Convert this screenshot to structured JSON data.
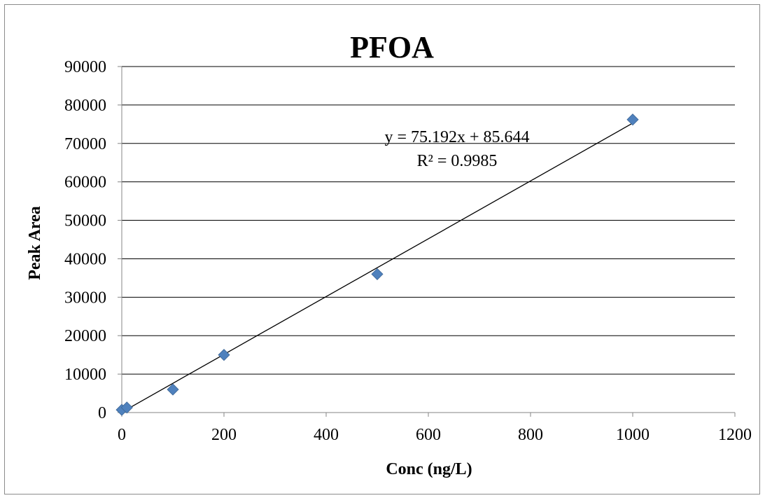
{
  "chart_data": {
    "type": "scatter",
    "title": "PFOA",
    "xlabel": "Conc (ng/L)",
    "ylabel": "Peak Area",
    "xlim": [
      0,
      1200
    ],
    "ylim": [
      0,
      90000
    ],
    "x_ticks": [
      0,
      200,
      400,
      600,
      800,
      1000,
      1200
    ],
    "y_ticks": [
      0,
      10000,
      20000,
      30000,
      40000,
      50000,
      60000,
      70000,
      80000,
      90000
    ],
    "grid": "horizontal major gridlines",
    "legend": "none",
    "marker": "diamond",
    "marker_color": "#4f81bd",
    "series": [
      {
        "points": [
          {
            "x": 0,
            "y": 700
          },
          {
            "x": 10,
            "y": 1300
          },
          {
            "x": 100,
            "y": 6000
          },
          {
            "x": 200,
            "y": 15000
          },
          {
            "x": 500,
            "y": 36000
          },
          {
            "x": 1000,
            "y": 76200
          }
        ]
      }
    ],
    "trendline": {
      "type": "linear",
      "slope": 75.192,
      "intercept": 85.644,
      "x_range": [
        0,
        1000
      ],
      "color": "#000000",
      "equation": "y = 75.192x + 85.644",
      "r_squared": "R² = 0.9985"
    }
  }
}
